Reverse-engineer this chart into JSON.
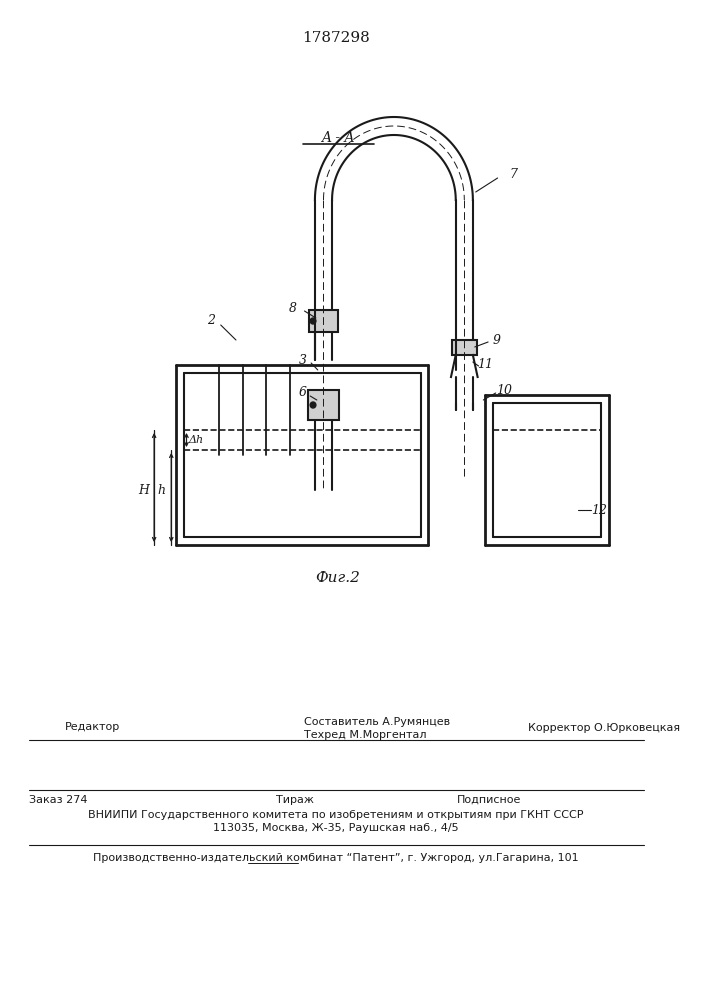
{
  "patent_number": "1787298",
  "fig_label": "Фиг.2",
  "section_label": "A - A",
  "bg": "#ffffff",
  "lc": "#1a1a1a",
  "footer": {
    "editor_label": "Редактор",
    "composer": "Составитель А.Румянцев",
    "techred": "Техред М.Моргентал",
    "corrector": "Корректор О.Юрковецкая",
    "order": "Заказ 274",
    "tirazh": "Тираж",
    "podpisnoe": "Подписное",
    "vniiipi": "ВНИИПИ Государственного комитета по изобретениям и открытиям при ГКНТ СССР",
    "address": "113035, Москва, Ж-35, Раушская наб., 4/5",
    "plant": "Производственно-издательский комбинат “Патент”, г. Ужгород, ул.Гагарина, 101"
  }
}
